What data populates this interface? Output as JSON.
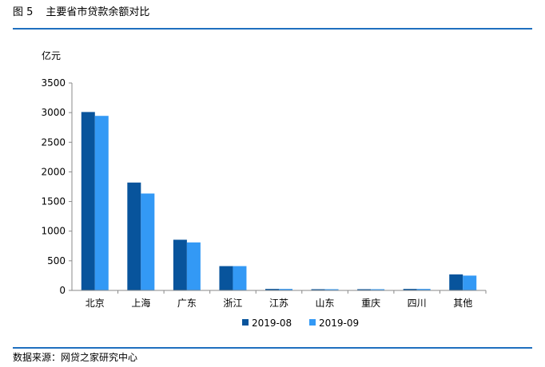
{
  "figure": {
    "label": "图 5",
    "title": "主要省市贷款余额对比",
    "source": "数据来源：网贷之家研究中心"
  },
  "chart_data": {
    "type": "bar",
    "title": "主要省市贷款余额对比",
    "ylabel": "亿元",
    "xlabel": "",
    "categories": [
      "北京",
      "上海",
      "广东",
      "浙江",
      "江苏",
      "山东",
      "重庆",
      "四川",
      "其他"
    ],
    "series": [
      {
        "name": "2019-08",
        "color": "#08549c",
        "values": [
          3010,
          1820,
          855,
          410,
          25,
          12,
          12,
          25,
          270
        ]
      },
      {
        "name": "2019-09",
        "color": "#3399f5",
        "values": [
          2945,
          1635,
          810,
          410,
          25,
          12,
          12,
          25,
          250
        ]
      }
    ],
    "ylim": [
      0,
      3500
    ],
    "yticks": [
      0,
      500,
      1000,
      1500,
      2000,
      2500,
      3000,
      3500
    ],
    "legend_position": "bottom"
  }
}
